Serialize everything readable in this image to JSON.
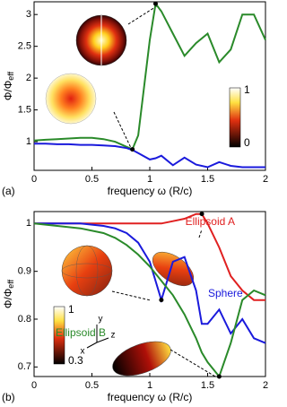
{
  "chart_data": [
    {
      "type": "line",
      "panel_label": "(a)",
      "x_label": "frequency ω (R/c)",
      "y_label": "Φ/Φ",
      "y_label_sub": "eff",
      "xlim": [
        0,
        2
      ],
      "xticks": [
        0,
        0.5,
        1,
        1.5,
        2
      ],
      "ylim": [
        0.55,
        3.2
      ],
      "yticks": [
        1,
        1.5,
        2,
        2.5,
        3
      ],
      "x": [
        0,
        0.1,
        0.2,
        0.3,
        0.4,
        0.5,
        0.6,
        0.7,
        0.8,
        0.85,
        0.9,
        1.0,
        1.05,
        1.1,
        1.2,
        1.3,
        1.4,
        1.5,
        1.6,
        1.7,
        1.8,
        1.9,
        2.0
      ],
      "series": [
        {
          "color": "#2a8a2a",
          "values": [
            1.02,
            1.03,
            1.04,
            1.05,
            1.06,
            1.06,
            1.04,
            1.0,
            0.92,
            0.88,
            1.1,
            2.6,
            3.17,
            3.05,
            2.7,
            2.35,
            2.55,
            2.7,
            2.25,
            2.45,
            3.0,
            3.0,
            2.6
          ]
        },
        {
          "color": "#1a1adc",
          "values": [
            0.97,
            0.97,
            0.96,
            0.96,
            0.95,
            0.95,
            0.94,
            0.93,
            0.9,
            0.87,
            0.82,
            0.72,
            0.74,
            0.78,
            0.63,
            0.75,
            0.64,
            0.6,
            0.68,
            0.62,
            0.6,
            0.6,
            0.6
          ]
        }
      ],
      "points": {
        "x": [
          0.85,
          1.05
        ],
        "y": [
          0.88,
          3.17
        ]
      },
      "colorbar_labels": [
        "1",
        "0"
      ]
    },
    {
      "type": "line",
      "panel_label": "(b)",
      "x_label": "frequency ω (R/c)",
      "y_label": "Φ/Φ",
      "y_label_sub": "eff",
      "xlim": [
        0,
        2
      ],
      "xticks": [
        0,
        0.5,
        1,
        1.5,
        2
      ],
      "ylim": [
        0.68,
        1.025
      ],
      "yticks": [
        0.7,
        0.8,
        0.9,
        1
      ],
      "x": [
        0,
        0.2,
        0.4,
        0.6,
        0.7,
        0.8,
        0.9,
        1.0,
        1.1,
        1.2,
        1.3,
        1.4,
        1.45,
        1.5,
        1.6,
        1.7,
        1.8,
        1.9,
        2.0
      ],
      "series": [
        {
          "name": "Ellipsoid A",
          "color": "#e02020",
          "values": [
            1,
            1,
            1,
            1,
            1,
            1,
            1,
            1,
            1.0,
            1.005,
            1.01,
            1.02,
            1.02,
            1.0,
            0.95,
            0.89,
            0.86,
            0.84,
            0.84
          ]
        },
        {
          "name": "Sphere",
          "color": "#1a1adc",
          "values": [
            1,
            1,
            1,
            0.995,
            0.99,
            0.98,
            0.96,
            0.92,
            0.84,
            0.92,
            0.93,
            0.86,
            0.79,
            0.79,
            0.82,
            0.77,
            0.8,
            0.76,
            0.75
          ]
        },
        {
          "name": "Ellipsoid B",
          "color": "#2a8a2a",
          "values": [
            1,
            0.995,
            0.99,
            0.98,
            0.97,
            0.955,
            0.935,
            0.91,
            0.88,
            0.85,
            0.81,
            0.76,
            0.73,
            0.71,
            0.68,
            0.75,
            0.84,
            0.86,
            0.85
          ]
        }
      ],
      "points": {
        "x": [
          1.1,
          1.45,
          1.6
        ],
        "y": [
          0.84,
          1.02,
          0.68
        ]
      },
      "colorbar_labels": [
        "1",
        "0.3"
      ],
      "axis_labels": [
        "y",
        "x",
        "z"
      ]
    }
  ]
}
